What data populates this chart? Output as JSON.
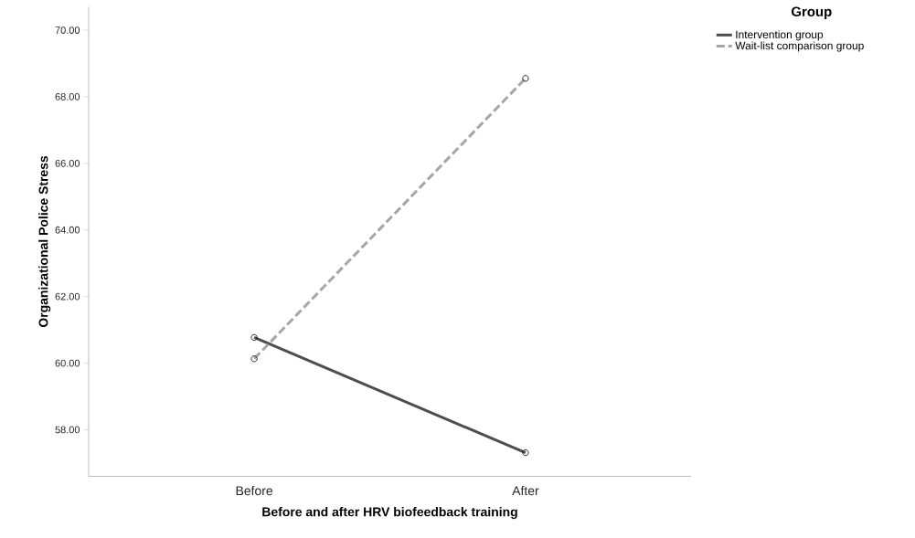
{
  "chart_data": {
    "type": "line",
    "xlabel": "Before and after HRV biofeedback training",
    "ylabel": "Organizational Police Stress",
    "legend_title": "Group",
    "categories": [
      "Before",
      "After"
    ],
    "series": [
      {
        "name": "Intervention group",
        "color": "#4d4d4d",
        "values": [
          60.77,
          57.31
        ],
        "line_style": "solid"
      },
      {
        "name": "Wait-list comparison group",
        "color": "#a6a6a6",
        "values": [
          60.13,
          68.55
        ],
        "line_style": "dashed"
      }
    ],
    "ylim": [
      56.6,
      70.7
    ],
    "yticks": [
      {
        "value": 58,
        "label": "58.00"
      },
      {
        "value": 60,
        "label": "60.00"
      },
      {
        "value": 62,
        "label": "62.00"
      },
      {
        "value": 64,
        "label": "64.00"
      },
      {
        "value": 66,
        "label": "66.00"
      },
      {
        "value": 68,
        "label": "68.00"
      },
      {
        "value": 70,
        "label": "70.00"
      }
    ],
    "marker": "circle",
    "legend": "top right",
    "grid": false
  }
}
